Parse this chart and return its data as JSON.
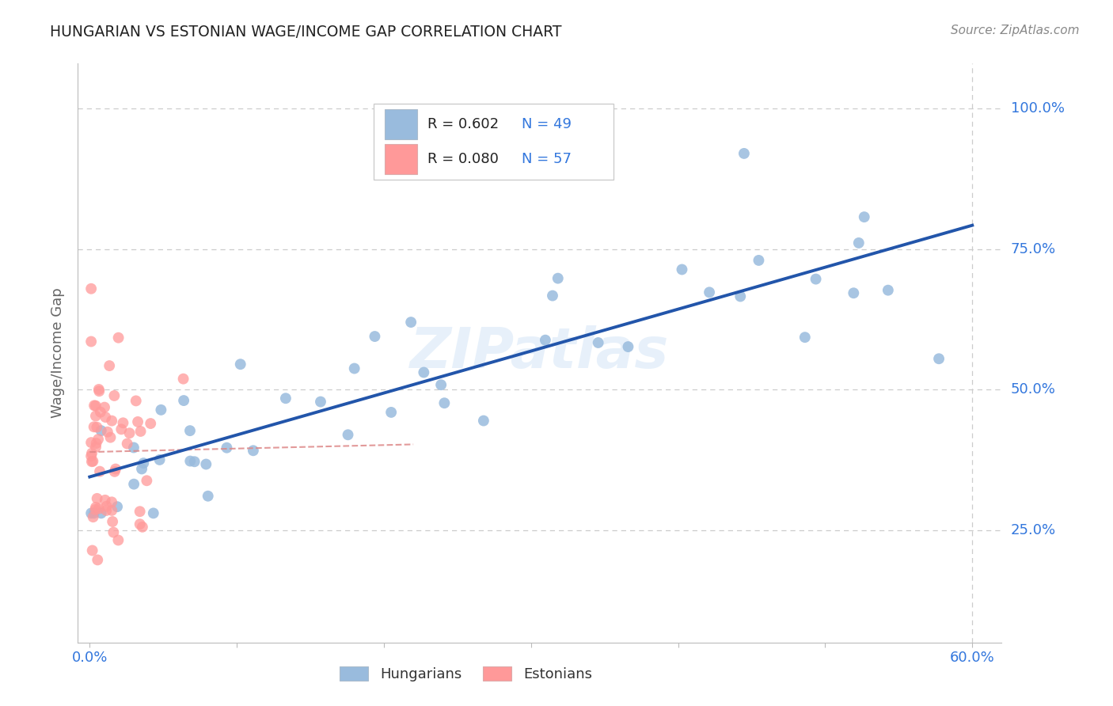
{
  "title": "HUNGARIAN VS ESTONIAN WAGE/INCOME GAP CORRELATION CHART",
  "source": "Source: ZipAtlas.com",
  "ylabel": "Wage/Income Gap",
  "legend_label1": "R = 0.602   N = 49",
  "legend_label2": "R = 0.080   N = 57",
  "legend_bottom1": "Hungarians",
  "legend_bottom2": "Estonians",
  "blue_color": "#99BBDD",
  "pink_color": "#FF9999",
  "line_blue": "#2255AA",
  "line_pink": "#FF9999",
  "watermark": "ZIPatlas",
  "grid_color": "#CCCCCC",
  "background_color": "#FFFFFF",
  "title_color": "#222222",
  "axis_label_color": "#666666",
  "tick_color": "#3377DD",
  "source_color": "#888888",
  "legend_text_color_R": "#222222",
  "legend_text_color_N": "#3377DD"
}
